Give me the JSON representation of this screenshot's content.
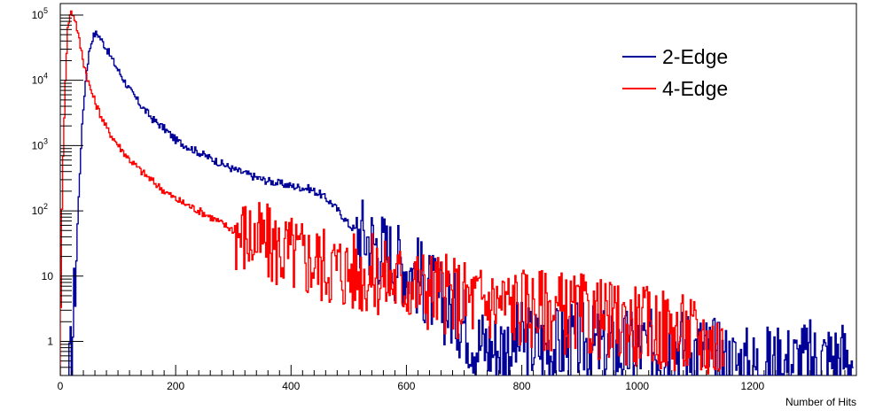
{
  "chart_data": {
    "type": "line",
    "title": "",
    "xlabel": "Number of Hits",
    "ylabel": "",
    "xlim": [
      0,
      1380
    ],
    "ylim": [
      0.3,
      150000
    ],
    "y_scale": "log",
    "grid": false,
    "legend_position": "top-right",
    "x_ticks": [
      0,
      200,
      400,
      600,
      800,
      1000,
      1200
    ],
    "y_ticks": [
      {
        "value": 1,
        "label": "1"
      },
      {
        "value": 10,
        "label": "10"
      },
      {
        "value": 100,
        "label": "10",
        "exp": "2"
      },
      {
        "value": 1000,
        "label": "10",
        "exp": "3"
      },
      {
        "value": 10000,
        "label": "10",
        "exp": "4"
      },
      {
        "value": 100000,
        "label": "10",
        "exp": "5"
      }
    ],
    "series": [
      {
        "name": "2-Edge",
        "color": "#000099",
        "x": [
          15,
          20,
          25,
          30,
          35,
          40,
          45,
          50,
          55,
          60,
          65,
          70,
          80,
          90,
          100,
          120,
          140,
          160,
          180,
          200,
          250,
          300,
          350,
          400,
          430,
          450,
          470,
          490,
          500,
          520,
          550,
          580,
          600,
          620,
          640,
          660,
          680,
          700,
          720,
          750,
          800,
          850,
          900,
          950,
          1000,
          1050,
          1100,
          1150,
          1200,
          1270,
          1373
        ],
        "y": [
          0.3,
          1,
          10,
          100,
          1000,
          5000,
          15000,
          30000,
          45000,
          52000,
          50000,
          42000,
          30000,
          20000,
          14000,
          7000,
          4000,
          2500,
          1800,
          1200,
          700,
          430,
          300,
          240,
          220,
          180,
          130,
          80,
          60,
          45,
          30,
          18,
          14,
          10,
          6,
          4,
          3,
          2,
          1,
          0.8,
          1,
          0.8,
          1,
          0.7,
          0.8,
          0.9,
          0.8,
          0.5,
          0.4,
          0.5,
          0.6
        ]
      },
      {
        "name": "4-Edge",
        "color": "#ff0000",
        "x": [
          0,
          3,
          6,
          9,
          12,
          15,
          18,
          21,
          24,
          27,
          30,
          35,
          40,
          45,
          50,
          60,
          70,
          80,
          100,
          120,
          140,
          160,
          180,
          200,
          250,
          300,
          350,
          400,
          450,
          500,
          550,
          600,
          650,
          680,
          700,
          750,
          800,
          850,
          900,
          950,
          1000,
          1050,
          1100,
          1150
        ],
        "y": [
          10,
          300,
          3000,
          20000,
          60000,
          95000,
          110000,
          105000,
          90000,
          70000,
          50000,
          30000,
          18000,
          12000,
          8000,
          4500,
          2800,
          1800,
          1000,
          600,
          400,
          280,
          200,
          150,
          90,
          50,
          32,
          22,
          16,
          12,
          10,
          8,
          6,
          5,
          4.5,
          4,
          3.5,
          3,
          2.5,
          2,
          1.8,
          1.5,
          1.2,
          0.8
        ]
      }
    ]
  }
}
